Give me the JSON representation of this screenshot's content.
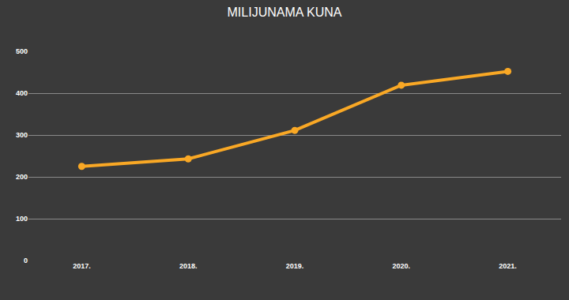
{
  "chart_data": {
    "type": "line",
    "title": "MILIJUNAMA KUNA",
    "categories": [
      "2017.",
      "2018.",
      "2019.",
      "2020.",
      "2021."
    ],
    "values": [
      225,
      243,
      311,
      419,
      452
    ],
    "color": "#f9a825",
    "marker": "circle",
    "ylim": [
      0,
      500
    ],
    "yticks": [
      0,
      100,
      200,
      300,
      400,
      500
    ],
    "grid": true
  }
}
